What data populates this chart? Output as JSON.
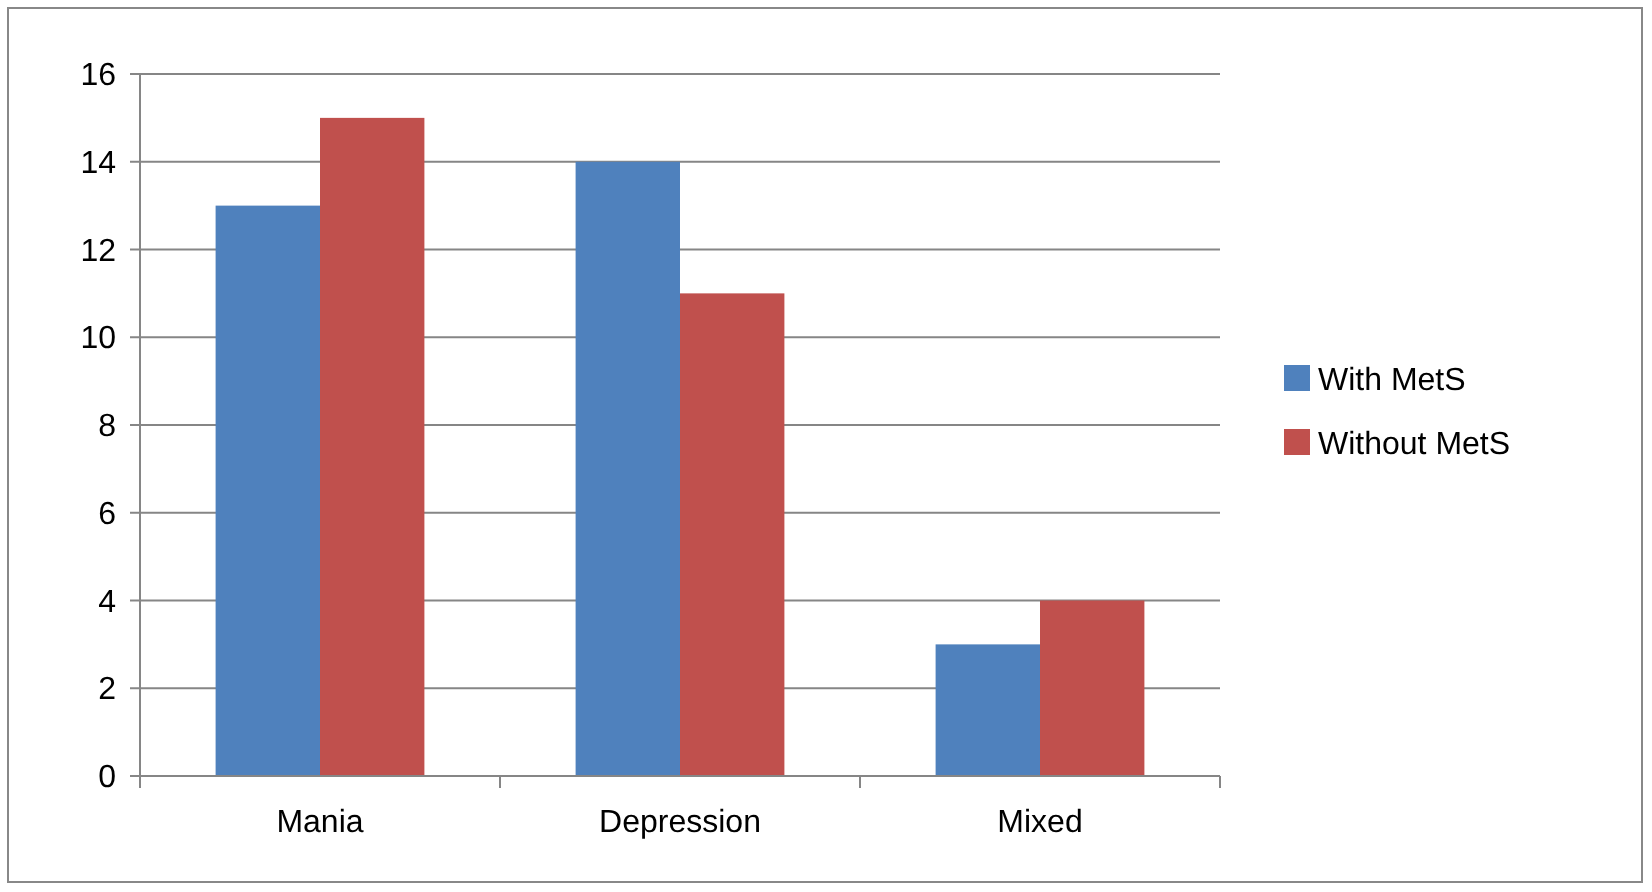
{
  "chart_data": {
    "type": "bar",
    "categories": [
      "Mania",
      "Depression",
      "Mixed"
    ],
    "series": [
      {
        "name": "With MetS",
        "color": "#4f81bd",
        "values": [
          13,
          14,
          3
        ]
      },
      {
        "name": "Without MetS",
        "color": "#c0504d",
        "values": [
          15,
          11,
          4
        ]
      }
    ],
    "ylim": [
      0,
      16
    ],
    "yticks": [
      0,
      2,
      4,
      6,
      8,
      10,
      12,
      14,
      16
    ],
    "grid": "y",
    "legend": "right"
  }
}
